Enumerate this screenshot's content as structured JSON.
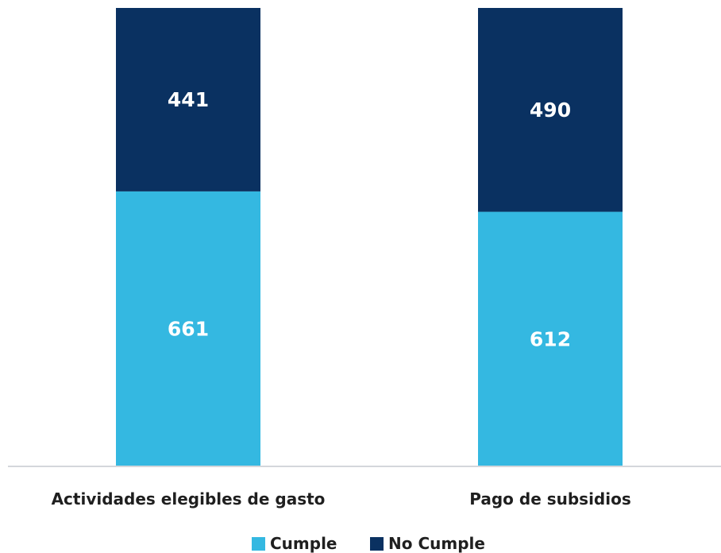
{
  "chart_data": {
    "type": "bar",
    "stacked": true,
    "categories": [
      "Actividades elegibles de gasto",
      "Pago de subsidios"
    ],
    "series": [
      {
        "name": "Cumple",
        "values": [
          661,
          612
        ],
        "color": "#34B8E1"
      },
      {
        "name": "No Cumple",
        "values": [
          441,
          490
        ],
        "color": "#0A3161"
      }
    ],
    "ylim": [
      0,
      1102
    ],
    "grid": false,
    "legend_position": "bottom-center",
    "baseline_color": "#D4D7DB"
  }
}
